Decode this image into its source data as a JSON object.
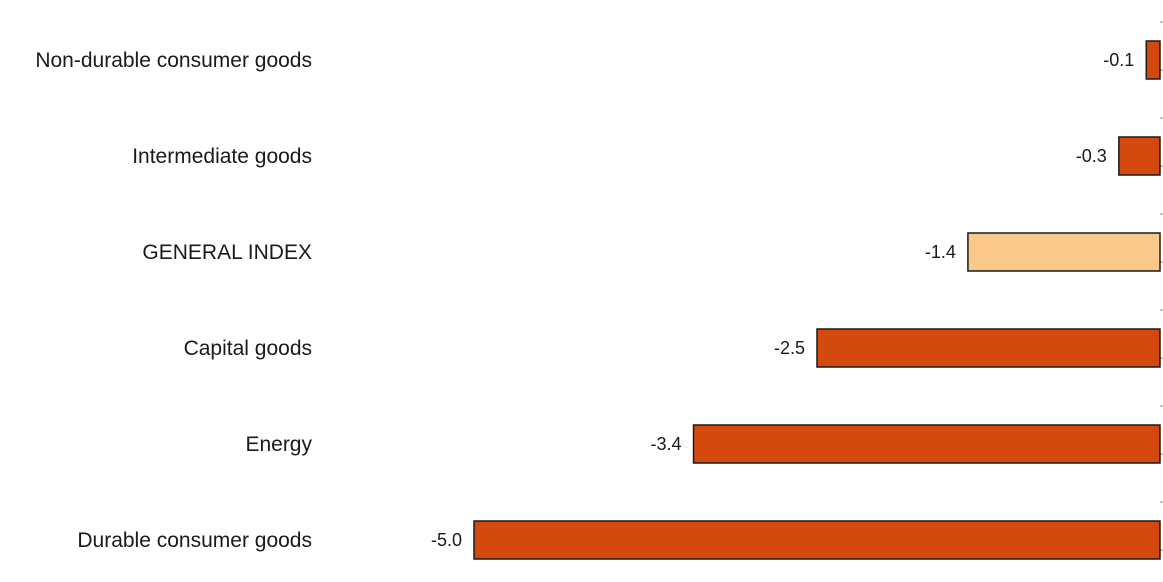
{
  "chart_data": {
    "type": "bar",
    "orientation": "horizontal",
    "categories": [
      "Non-durable consumer goods",
      "Intermediate goods",
      "GENERAL INDEX",
      "Capital goods",
      "Energy",
      "Durable consumer goods"
    ],
    "values": [
      -0.1,
      -0.3,
      -1.4,
      -2.5,
      -3.4,
      -5.0
    ],
    "value_labels": [
      "-0.1",
      "-0.3",
      "-1.4",
      "-2.5",
      "-3.4",
      "-5.0"
    ],
    "highlight_category": "GENERAL INDEX",
    "xlim": [
      -5.0,
      0
    ],
    "grid": false,
    "legend": "none",
    "colors": {
      "bar": "#d44a0e",
      "highlight": "#f8c98a",
      "outline": "#1a1a1a"
    }
  }
}
